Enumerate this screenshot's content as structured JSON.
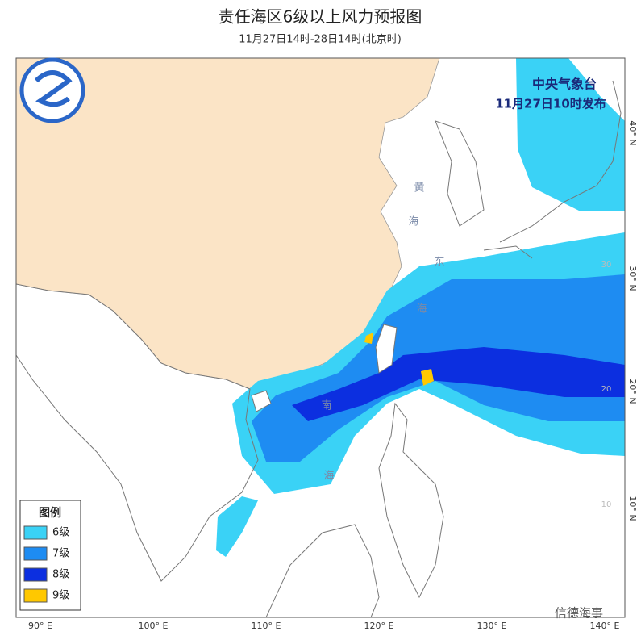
{
  "header": {
    "title": "责任海区6级以上风力预报图",
    "subtitle": "11月27日14时-28日14时(北京时)"
  },
  "issuer": {
    "agency": "中央气象台",
    "issued": "11月27日10时发布"
  },
  "legend": {
    "title": "图例",
    "items": [
      {
        "label": "6级",
        "color": "#3ad2f6"
      },
      {
        "label": "7级",
        "color": "#1e8cf2"
      },
      {
        "label": "8级",
        "color": "#0c2fe0"
      },
      {
        "label": "9级",
        "color": "#ffc800"
      }
    ]
  },
  "map": {
    "lon_labels": [
      "90° E",
      "100° E",
      "110° E",
      "120° E",
      "130° E",
      "140° E"
    ],
    "lat_labels": [
      "40° N",
      "30° N",
      "20° N",
      "10° N"
    ],
    "inner_lat_labels": [
      "30",
      "20",
      "10"
    ],
    "sea_labels": [
      "黄",
      "海",
      "东",
      "海",
      "南",
      "海"
    ]
  },
  "watermark": "信德海事"
}
